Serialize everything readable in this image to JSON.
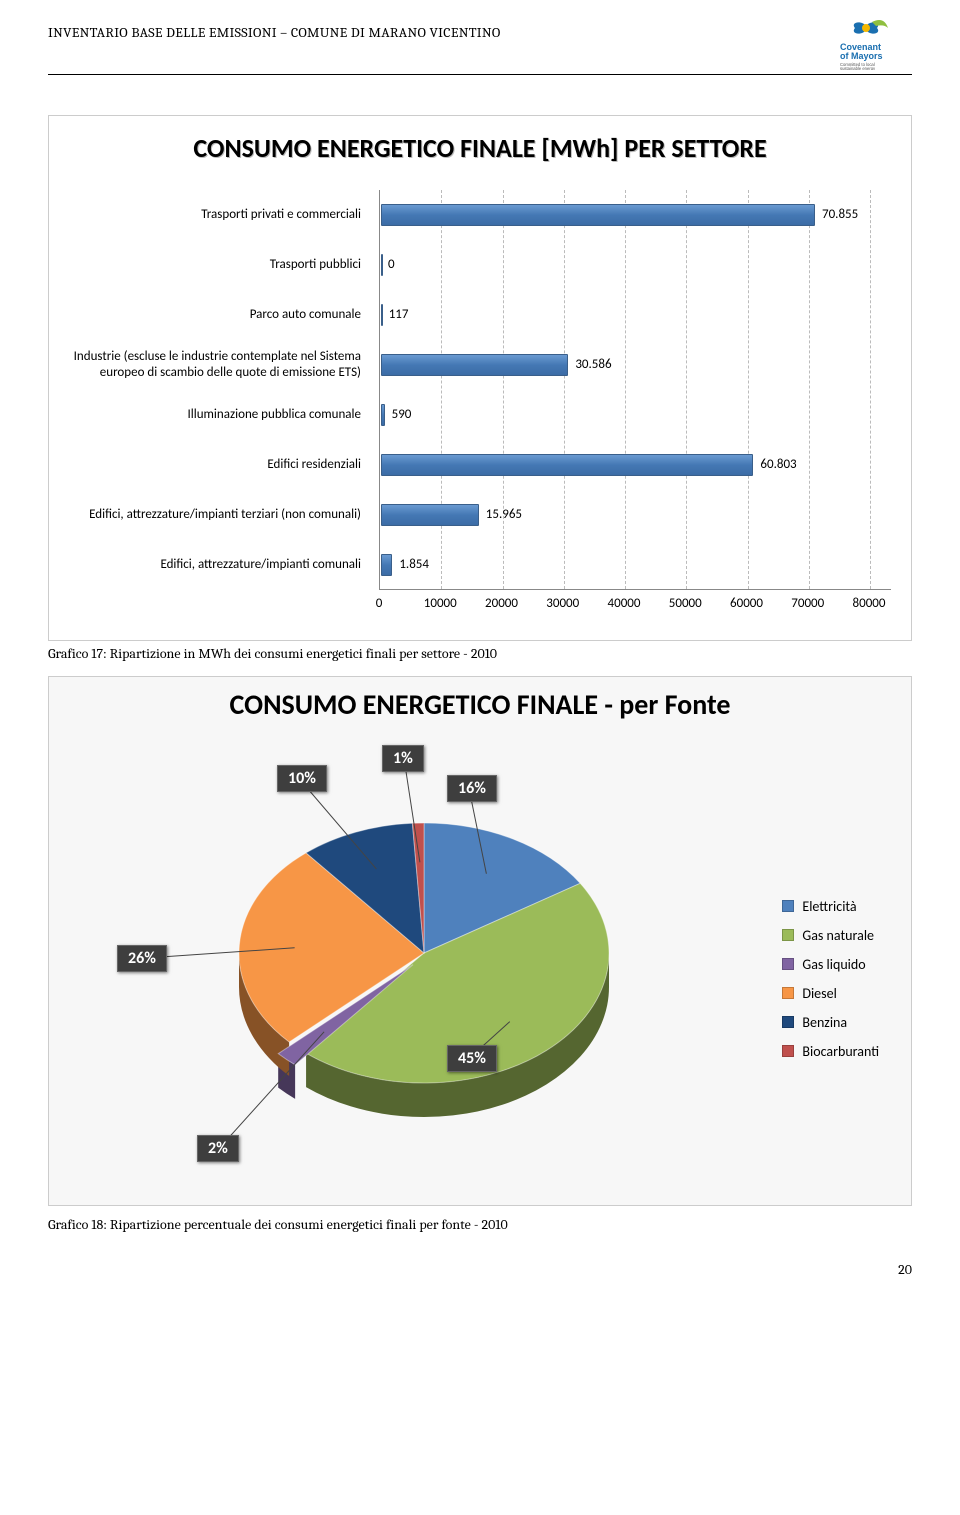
{
  "header": {
    "title": "INVENTARIO BASE DELLE EMISSIONI – COMUNE DI MARANO VICENTINO",
    "logo_top": "Covenant",
    "logo_mid": "of Mayors",
    "logo_sub": "Committed to local sustainable energy"
  },
  "bar_chart": {
    "title": "CONSUMO ENERGETICO FINALE [MWh]  PER SETTORE",
    "bar_color": "#4f81bd",
    "grid_color": "#bbbbbb",
    "font_family": "Calibri",
    "xmax": 80000,
    "tick_step": 10000,
    "ticks": [
      "0",
      "10000",
      "20000",
      "30000",
      "40000",
      "50000",
      "60000",
      "70000",
      "80000"
    ],
    "rows": [
      {
        "label": "Trasporti privati e commerciali",
        "value": 70855,
        "value_label": "70.855"
      },
      {
        "label": "Trasporti pubblici",
        "value": 0,
        "value_label": "0"
      },
      {
        "label": "Parco auto comunale",
        "value": 117,
        "value_label": "117"
      },
      {
        "label": "Industrie (escluse le industrie contemplate nel Sistema europeo di scambio delle quote di emissione ETS)",
        "value": 30586,
        "value_label": "30.586"
      },
      {
        "label": "Illuminazione pubblica comunale",
        "value": 590,
        "value_label": "590"
      },
      {
        "label": "Edifici residenziali",
        "value": 60803,
        "value_label": "60.803"
      },
      {
        "label": "Edifici, attrezzature/impianti terziari (non comunali)",
        "value": 15965,
        "value_label": "15.965"
      },
      {
        "label": "Edifici, attrezzature/impianti comunali",
        "value": 1854,
        "value_label": "1.854"
      }
    ]
  },
  "caption1": "Grafico 17: Ripartizione in MWh dei consumi energetici finali per settore - 2010",
  "pie_chart": {
    "title": "CONSUMO ENERGETICO FINALE - per Fonte",
    "background_color": "#f7f7f7",
    "explode_index": 2,
    "slices": [
      {
        "label": "Elettricità",
        "pct": 16,
        "callout": "16%",
        "color": "#4f81bd"
      },
      {
        "label": "Gas naturale",
        "pct": 45,
        "callout": "45%",
        "color": "#9bbb59"
      },
      {
        "label": "Gas liquido",
        "pct": 2,
        "callout": "2%",
        "color": "#8064a2"
      },
      {
        "label": "Diesel",
        "pct": 26,
        "callout": "26%",
        "color": "#f79646"
      },
      {
        "label": "Benzina",
        "pct": 10,
        "callout": "10%",
        "color": "#1f497d"
      },
      {
        "label": "Biocarburanti",
        "pct": 1,
        "callout": "1%",
        "color": "#c0504d"
      }
    ],
    "callout_bg": "#3e3e3e",
    "callout_fg": "#ffffff"
  },
  "caption2": "Grafico 18: Ripartizione percentuale dei consumi energetici finali per fonte - 2010",
  "page_number": "20"
}
